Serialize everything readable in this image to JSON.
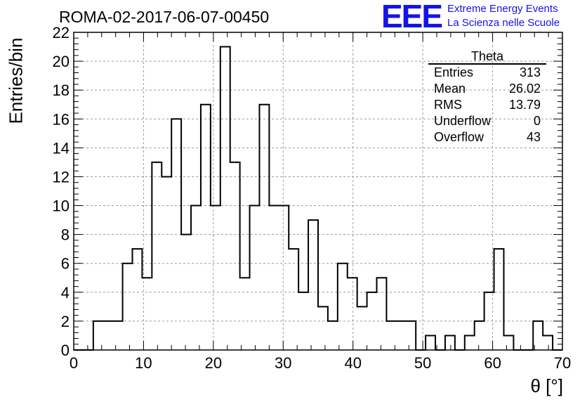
{
  "run_title": "ROMA-02-2017-06-07-00450",
  "logo": {
    "mark": "EEE",
    "line1": "Extreme Energy Events",
    "line2": "La Scienza nelle Scuole",
    "color": "#1414e6"
  },
  "stats_box": {
    "title": "Theta",
    "rows": [
      {
        "label": "Entries",
        "value": "313"
      },
      {
        "label": "Mean",
        "value": "26.02"
      },
      {
        "label": "RMS",
        "value": "13.79"
      },
      {
        "label": "Underflow",
        "value": "0"
      },
      {
        "label": "Overflow",
        "value": "43"
      }
    ]
  },
  "chart_data": {
    "type": "bar",
    "style": "step-histogram",
    "title": "ROMA-02-2017-06-07-00450",
    "xlabel": "θ [°]",
    "ylabel": "Entries/bin",
    "xlim": [
      0,
      70
    ],
    "ylim": [
      0,
      22
    ],
    "bin_width": 1.4,
    "bin_edges": [
      0,
      1.4,
      2.8,
      4.2,
      5.6,
      7.0,
      8.4,
      9.8,
      11.2,
      12.6,
      14.0,
      15.4,
      16.8,
      18.2,
      19.6,
      21.0,
      22.4,
      23.8,
      25.2,
      26.6,
      28.0,
      29.4,
      30.8,
      32.2,
      33.6,
      35.0,
      36.4,
      37.8,
      39.2,
      40.6,
      42.0,
      43.4,
      44.8,
      46.2,
      47.6,
      49.0,
      50.4,
      51.8,
      53.2,
      54.6,
      56.0,
      57.4,
      58.8,
      60.2,
      61.6,
      63.0,
      64.4,
      65.8,
      67.2,
      68.6,
      70.0
    ],
    "values": [
      0,
      0,
      2,
      2,
      2,
      6,
      7,
      5,
      13,
      12,
      16,
      8,
      10,
      17,
      10,
      21,
      13,
      5,
      10,
      17,
      10,
      10,
      7,
      4,
      9,
      3,
      2,
      6,
      5,
      3,
      4,
      5,
      2,
      2,
      2,
      0,
      1,
      0,
      1,
      0,
      1,
      2,
      4,
      7,
      1,
      0,
      0,
      2,
      1,
      0
    ],
    "xticks": [
      "0",
      "10",
      "20",
      "30",
      "40",
      "50",
      "60",
      "70"
    ],
    "yticks": [
      "0",
      "2",
      "4",
      "6",
      "8",
      "10",
      "12",
      "14",
      "16",
      "18",
      "20",
      "22"
    ],
    "grid": true,
    "legend": "none",
    "stats_placement": "top-right"
  }
}
